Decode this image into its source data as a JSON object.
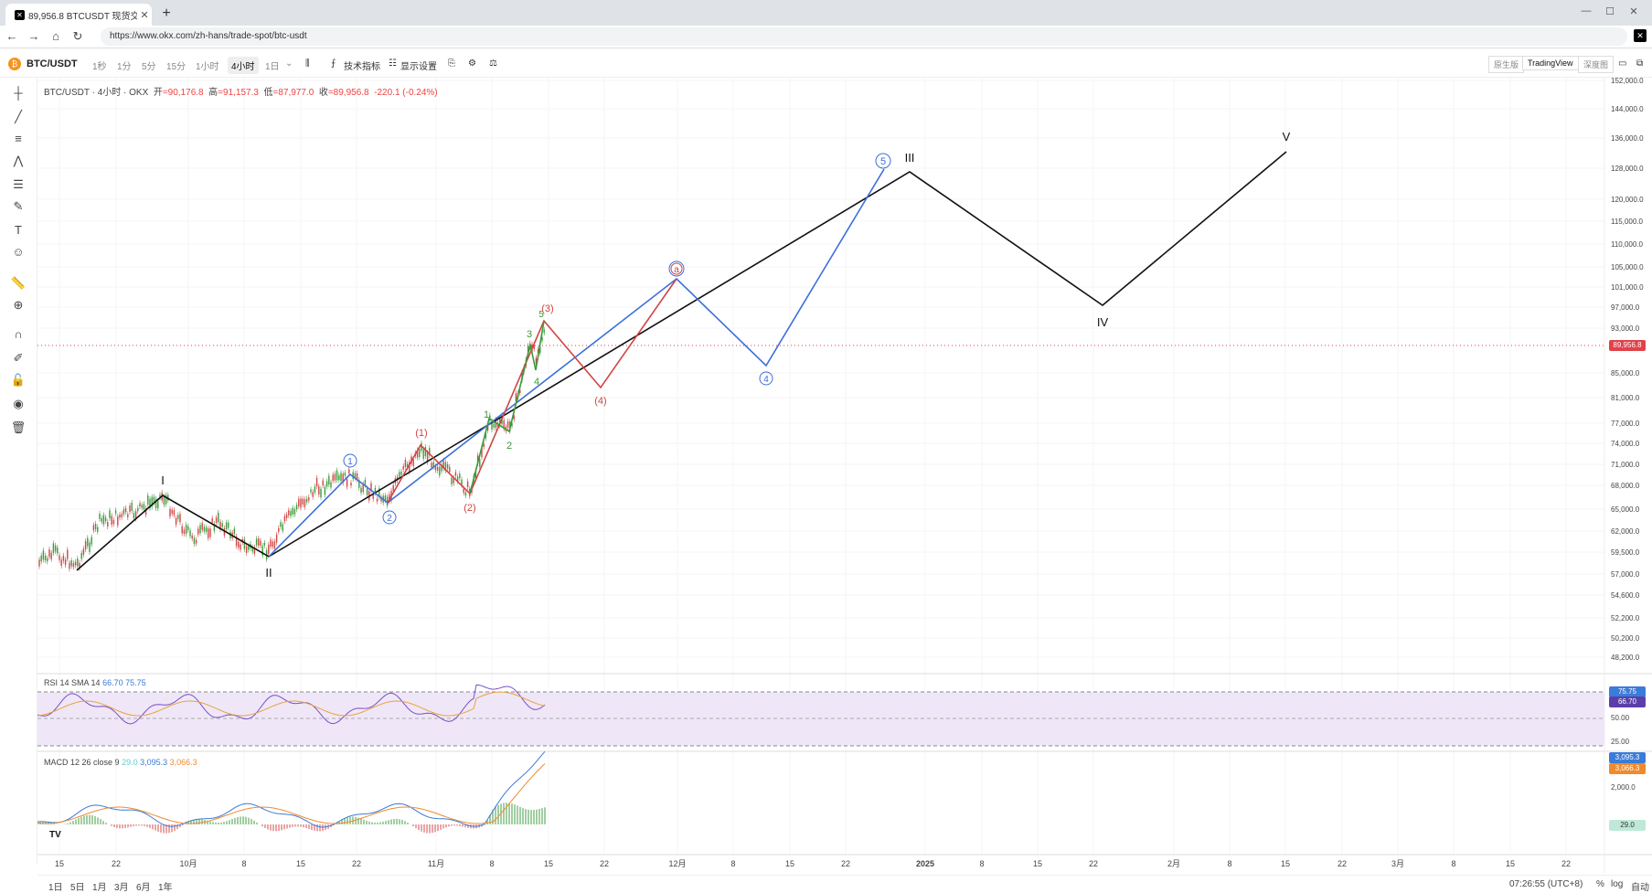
{
  "browser": {
    "tab_title": "89,956.8 BTCUSDT 现货交易 | 欧...",
    "tab_favicon": "okx-logo",
    "url": "https://www.okx.com/zh-hans/trade-spot/btc-usdt"
  },
  "toolbar": {
    "pair": "BTC/USDT",
    "timeframes": [
      "1秒",
      "1分",
      "5分",
      "15分",
      "1小时",
      "4小时",
      "1日"
    ],
    "active_timeframe": "4小时",
    "indicators_label": "技术指标",
    "display_settings_label": "显示设置",
    "views": [
      "原生版",
      "TradingView",
      "深度图"
    ],
    "active_view": "TradingView"
  },
  "legend": {
    "symbol": "BTC/USDT · 4小时 · OKX",
    "open_label": "开",
    "open": "=90,176.8",
    "high_label": "高",
    "high": "=91,157.3",
    "low_label": "低",
    "low": "=87,977.0",
    "close_label": "收",
    "close": "=89,956.8",
    "change": "-220.1 (-0.24%)"
  },
  "rsi_legend": {
    "name": "RSI 14 SMA 14",
    "v1": "66.70",
    "v2": "75.75"
  },
  "macd_legend": {
    "name": "MACD 12 26 close 9",
    "v1": "29.0",
    "v2": "3,095.3",
    "v3": "3,066.3"
  },
  "price_axis": [
    "152,000.0",
    "144,000.0",
    "136,000.0",
    "128,000.0",
    "120,000.0",
    "115,000.0",
    "110,000.0",
    "105,000.0",
    "101,000.0",
    "97,000.0",
    "93,000.0",
    "85,000.0",
    "81,000.0",
    "77,000.0",
    "74,000.0",
    "71,000.0",
    "68,000.0",
    "65,000.0",
    "62,000.0",
    "59,500.0",
    "57,000.0",
    "54,600.0",
    "52,200.0",
    "50,200.0",
    "48,200.0"
  ],
  "current_price": "89,956.8",
  "rsi_axis": [
    "50.00",
    "25.00"
  ],
  "rsi_tags": [
    "75.75",
    "66.70"
  ],
  "macd_axis": [
    "2,000.0"
  ],
  "macd_tags": [
    "3,095.3",
    "3,066.3",
    "29.0"
  ],
  "time_axis": [
    "15",
    "22",
    "10月",
    "8",
    "15",
    "22",
    "11月",
    "8",
    "15",
    "22",
    "12月",
    "8",
    "15",
    "22",
    "2025",
    "8",
    "15",
    "22",
    "2月",
    "8",
    "15",
    "22",
    "3月",
    "8",
    "15",
    "22"
  ],
  "ranges": [
    "1日",
    "5日",
    "1月",
    "3月",
    "6月",
    "1年"
  ],
  "clock": "07:26:55 (UTC+8)",
  "bottom_right": [
    "%",
    "log",
    "自动"
  ],
  "waves": {
    "primary": [
      "I",
      "II",
      "III",
      "IV",
      "V"
    ],
    "intermediate": [
      "1",
      "2",
      "4",
      "5"
    ],
    "minor": [
      "(1)",
      "(2)",
      "(3)",
      "(4)"
    ],
    "minute": [
      "1",
      "2",
      "3",
      "4",
      "5"
    ],
    "intermediate_alt": "a"
  },
  "colors": {
    "black_wave": "#111111",
    "blue_wave": "#3b6fd9",
    "red_wave": "#d04545",
    "green_wave": "#3c9a3c",
    "price_tag": "#e0424a",
    "rsi_fill": "#efe7f7",
    "rsi_line": "#7b4fc9",
    "macd_line": "#3b7bd9",
    "signal_line": "#ef8b2c"
  }
}
